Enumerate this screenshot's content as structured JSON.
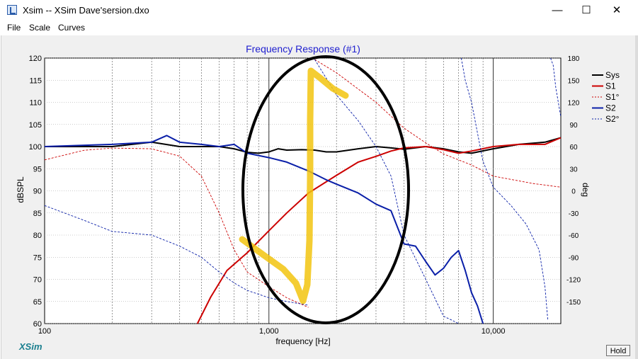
{
  "window": {
    "title": "Xsim -- XSim Dave'sersion.dxo",
    "min_glyph": "—",
    "max_glyph": "☐",
    "close_glyph": "✕"
  },
  "menu": {
    "items": [
      "File",
      "Scale",
      "Curves"
    ]
  },
  "brand": "XSim",
  "hold_label": "Hold",
  "chart_data": {
    "type": "line",
    "title": "Frequency Response (#1)",
    "xlabel": "frequency [Hz]",
    "ylabel": "dBSPL",
    "y2label": "deg",
    "xscale": "log",
    "xlim": [
      100,
      20000
    ],
    "ylim": [
      60,
      120
    ],
    "y2lim": [
      -180,
      180
    ],
    "x_ticks": [
      100,
      1000,
      10000
    ],
    "x_tick_labels": [
      "100",
      "1,000",
      "10,000"
    ],
    "y_ticks": [
      60,
      65,
      70,
      75,
      80,
      85,
      90,
      95,
      100,
      105,
      110,
      115,
      120
    ],
    "y2_ticks": [
      -150,
      -120,
      -90,
      -60,
      -30,
      0,
      30,
      60,
      90,
      120,
      150,
      180
    ],
    "grid": true,
    "legend_position": "right",
    "colors": {
      "title": "#1f1fcf",
      "sys": "#000000",
      "s1": "#cc0000",
      "s2": "#0a1fa8",
      "annotation": "#f2c40f"
    },
    "series": [
      {
        "name": "Sys",
        "axis": "left",
        "style": "solid-thick",
        "color": "#000000",
        "x": [
          100,
          200,
          300,
          400,
          500,
          600,
          700,
          800,
          900,
          1000,
          1100,
          1200,
          1400,
          1600,
          1800,
          2000,
          2500,
          3000,
          3500,
          4000,
          5000,
          6000,
          7000,
          8000,
          10000,
          13000,
          17000,
          20000
        ],
        "y": [
          100,
          100,
          101,
          100,
          100,
          100,
          99.5,
          98.7,
          98.5,
          98.8,
          99.5,
          99.2,
          99.3,
          99.2,
          98.8,
          98.8,
          99.5,
          100,
          99.7,
          99.4,
          100,
          99.5,
          98.8,
          98.5,
          99.5,
          100.5,
          101,
          102
        ]
      },
      {
        "name": "S1",
        "axis": "left",
        "style": "solid-thick",
        "color": "#cc0000",
        "x": [
          480,
          550,
          650,
          800,
          1000,
          1200,
          1500,
          2000,
          2500,
          3000,
          3500,
          4000,
          5000,
          6000,
          7000,
          8000,
          10000,
          13000,
          17000,
          20000
        ],
        "y": [
          60,
          66,
          72,
          76,
          81,
          85,
          89.5,
          93.5,
          96.5,
          97.8,
          99,
          99.7,
          100,
          99.3,
          98.5,
          99,
          100,
          100.5,
          100.5,
          102
        ]
      },
      {
        "name": "S1°",
        "axis": "right",
        "style": "dashed-thin",
        "color": "#cc0000",
        "x": [
          100,
          150,
          200,
          300,
          400,
          500,
          600,
          700,
          800,
          1000,
          1200,
          1500,
          1600,
          2000,
          3000,
          4000,
          5000,
          6000,
          8000,
          10000,
          15000,
          20000
        ],
        "y": [
          42,
          55,
          58,
          57,
          47,
          20,
          -30,
          -80,
          -110,
          -130,
          -145,
          -158,
          178,
          160,
          120,
          85,
          65,
          50,
          35,
          20,
          10,
          5
        ]
      },
      {
        "name": "S2",
        "axis": "left",
        "style": "solid-thick",
        "color": "#0a1fa8",
        "x": [
          100,
          200,
          300,
          350,
          400,
          500,
          600,
          700,
          800,
          1000,
          1200,
          1500,
          1800,
          2000,
          2500,
          3000,
          3500,
          4000,
          4500,
          5000,
          5500,
          6000,
          6500,
          7000,
          7500,
          8000,
          8500,
          9000
        ],
        "y": [
          100,
          100.5,
          101,
          102.5,
          101,
          100.5,
          100,
          100.5,
          98.5,
          97.5,
          96.5,
          94.5,
          92.5,
          91.5,
          89.5,
          87,
          85.5,
          78,
          77.5,
          74,
          71,
          72.5,
          75,
          76.5,
          72,
          67,
          64,
          60
        ]
      },
      {
        "name": "S2°",
        "axis": "right",
        "style": "dashed-thin",
        "color": "#0a1fa8",
        "x": [
          100,
          150,
          200,
          300,
          400,
          500,
          600,
          700,
          800,
          1000,
          1200,
          1500,
          1600,
          2000,
          2500,
          3000,
          3500,
          4000,
          5000,
          6000,
          6500,
          7000,
          7200,
          7300,
          7500,
          8000,
          9000,
          10000,
          12000,
          14000,
          16000,
          17000,
          17500,
          18000,
          18500,
          19000,
          20000
        ],
        "y": [
          -20,
          -40,
          -55,
          -60,
          -75,
          -90,
          -110,
          -125,
          -135,
          -145,
          -150,
          -155,
          178,
          130,
          95,
          60,
          20,
          -60,
          -120,
          -170,
          -175,
          -180,
          180,
          170,
          150,
          120,
          40,
          5,
          -20,
          -45,
          -80,
          -130,
          -175,
          180,
          170,
          140,
          100
        ]
      }
    ]
  }
}
